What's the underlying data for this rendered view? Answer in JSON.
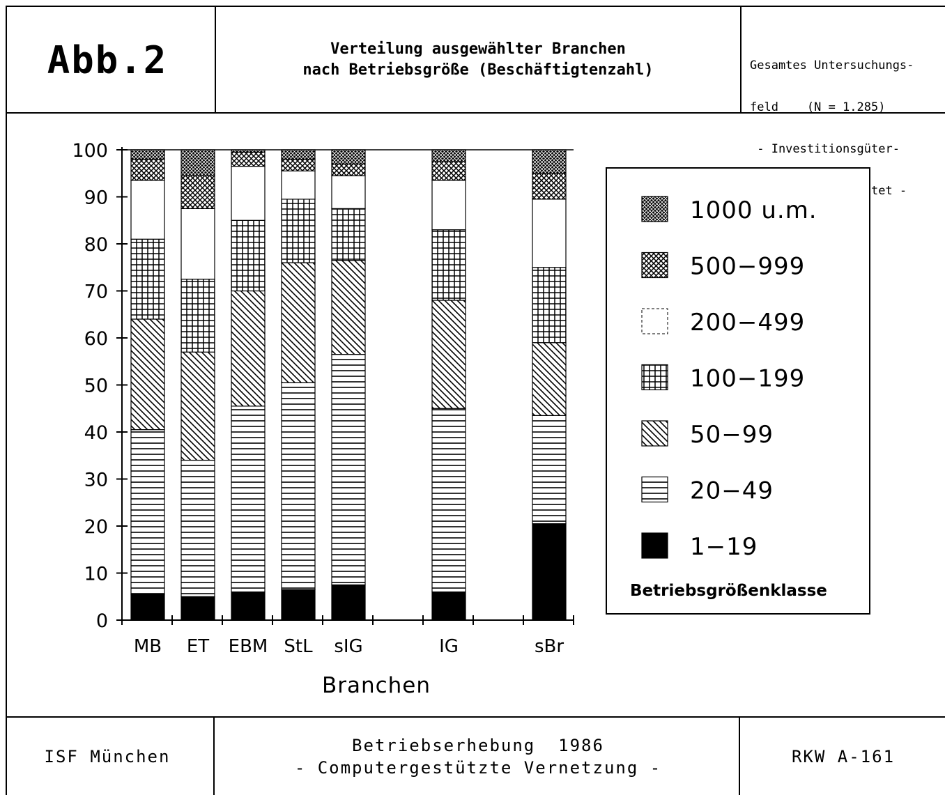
{
  "header": {
    "figure_label": "Abb.2",
    "title_line1": "Verteilung ausgewählter Branchen",
    "title_line2": "nach Betriebsgröße (Beschäftigtenzahl)",
    "meta_line1": "Gesamtes Untersuchungs-",
    "meta_line2": "feld    (N = 1.285)",
    "meta_line3": " - Investitionsgüter-",
    "meta_line4": " industrie gewichtet -"
  },
  "footer": {
    "left": "ISF München",
    "center_line1": "Betriebserhebung  1986",
    "center_line2": "- Computergestützte Vernetzung -",
    "right": "RKW A-161"
  },
  "colors": {
    "ink": "#000000",
    "paper": "#ffffff"
  },
  "chart_data": {
    "type": "bar",
    "stacked": true,
    "xlabel": "Branchen",
    "ylabel": "",
    "ylim": [
      0,
      100
    ],
    "yticks": [
      0,
      10,
      20,
      30,
      40,
      50,
      60,
      70,
      80,
      90,
      100
    ],
    "categories": [
      "MB",
      "ET",
      "EBM",
      "StL",
      "sIG",
      "IG",
      "sBr"
    ],
    "category_slots": [
      0,
      1,
      2,
      3,
      4,
      6,
      8
    ],
    "legend": {
      "title": "Betriebsgrößenklasse",
      "position": "right"
    },
    "series": [
      {
        "name": "1-19",
        "pattern": "solid",
        "values": [
          5.5,
          5.0,
          6.0,
          6.5,
          7.5,
          6.0,
          20.5
        ]
      },
      {
        "name": "20-49",
        "pattern": "horizontal",
        "values": [
          35.0,
          29.0,
          39.5,
          44.0,
          49.0,
          39.0,
          23.0
        ]
      },
      {
        "name": "50-99",
        "pattern": "diagonal",
        "values": [
          23.5,
          23.0,
          24.5,
          25.5,
          20.0,
          23.0,
          15.5
        ]
      },
      {
        "name": "100-199",
        "pattern": "grid",
        "values": [
          17.0,
          15.5,
          15.0,
          13.5,
          11.0,
          15.0,
          16.0
        ]
      },
      {
        "name": "200-499",
        "pattern": "empty",
        "values": [
          12.5,
          15.0,
          11.5,
          6.0,
          7.0,
          10.5,
          14.5
        ]
      },
      {
        "name": "500-999",
        "pattern": "crosshatch",
        "values": [
          4.5,
          7.0,
          3.0,
          2.5,
          2.5,
          4.0,
          5.5
        ]
      },
      {
        "name": "1000 u.m.",
        "pattern": "dense",
        "values": [
          2.0,
          5.5,
          0.5,
          2.0,
          3.0,
          2.5,
          5.0
        ]
      }
    ]
  }
}
